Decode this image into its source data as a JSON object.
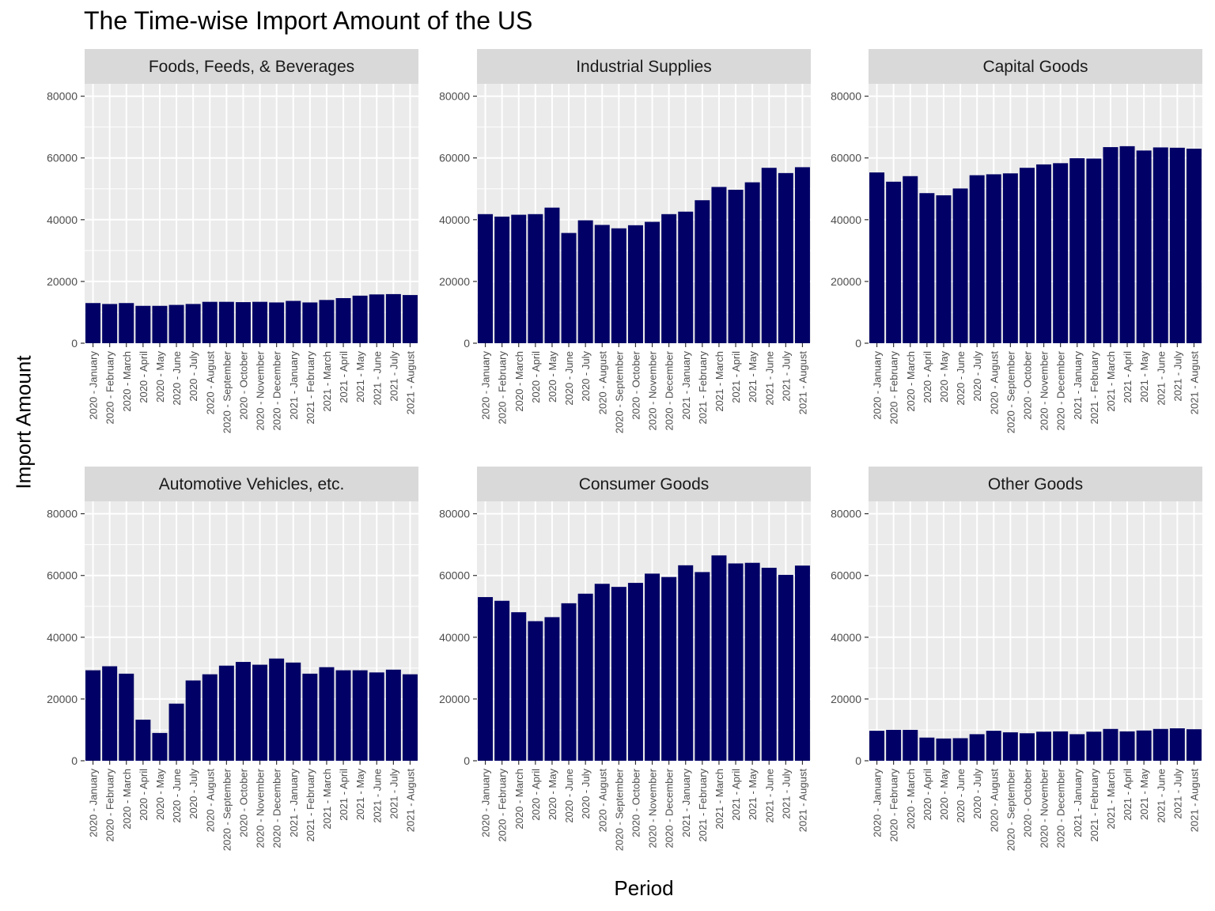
{
  "title": "The Time-wise Import Amount of the US",
  "chart_data": {
    "type": "bar",
    "title": "The Time-wise Import Amount of the US",
    "xlabel": "Period",
    "ylabel": "Import Amount",
    "ylim": [
      0,
      84000
    ],
    "yticks": [
      0,
      20000,
      40000,
      60000,
      80000
    ],
    "grid": true,
    "bar_color": "#000066",
    "panel_background": "#ebebeb",
    "strip_background": "#d9d9d9",
    "categories": [
      "2020 - January",
      "2020 - February",
      "2020 - March",
      "2020 - April",
      "2020 - May",
      "2020 - June",
      "2020 - July",
      "2020 - August",
      "2020 - September",
      "2020 - October",
      "2020 - November",
      "2020 - December",
      "2021 - January",
      "2021 - February",
      "2021 - March",
      "2021 - April",
      "2021 - May",
      "2021 - June",
      "2021 - July",
      "2021 - August"
    ],
    "panels": [
      {
        "name": "Foods, Feeds, & Beverages",
        "values": [
          13000,
          12700,
          13000,
          12100,
          12100,
          12400,
          12700,
          13400,
          13400,
          13300,
          13400,
          13200,
          13700,
          13200,
          14000,
          14600,
          15400,
          15800,
          15900,
          15600
        ]
      },
      {
        "name": "Industrial Supplies",
        "values": [
          41800,
          41000,
          41600,
          41800,
          43900,
          35700,
          39800,
          38300,
          37200,
          38200,
          39300,
          41800,
          42600,
          46300,
          50600,
          49700,
          52100,
          56800,
          55100,
          57000
        ]
      },
      {
        "name": "Capital Goods",
        "values": [
          55300,
          52300,
          54100,
          48600,
          47900,
          50100,
          54400,
          54700,
          55000,
          56800,
          57900,
          58300,
          59900,
          59800,
          63500,
          63800,
          62400,
          63400,
          63300,
          63000
        ]
      },
      {
        "name": "Automotive Vehicles, etc.",
        "values": [
          29300,
          30600,
          28200,
          13300,
          9000,
          18500,
          26000,
          28000,
          30800,
          32000,
          31100,
          33100,
          31800,
          28200,
          30300,
          29300,
          29300,
          28600,
          29500,
          28000
        ]
      },
      {
        "name": "Consumer Goods",
        "values": [
          53000,
          51800,
          48100,
          45200,
          46500,
          51000,
          54100,
          57300,
          56300,
          57600,
          60600,
          59500,
          63300,
          61100,
          66500,
          63900,
          64100,
          62500,
          60200,
          63200
        ]
      },
      {
        "name": "Other Goods",
        "values": [
          9700,
          10000,
          10000,
          7500,
          7200,
          7300,
          8600,
          9700,
          9200,
          8900,
          9400,
          9500,
          8600,
          9400,
          10300,
          9500,
          9800,
          10300,
          10500,
          10200
        ]
      }
    ]
  }
}
